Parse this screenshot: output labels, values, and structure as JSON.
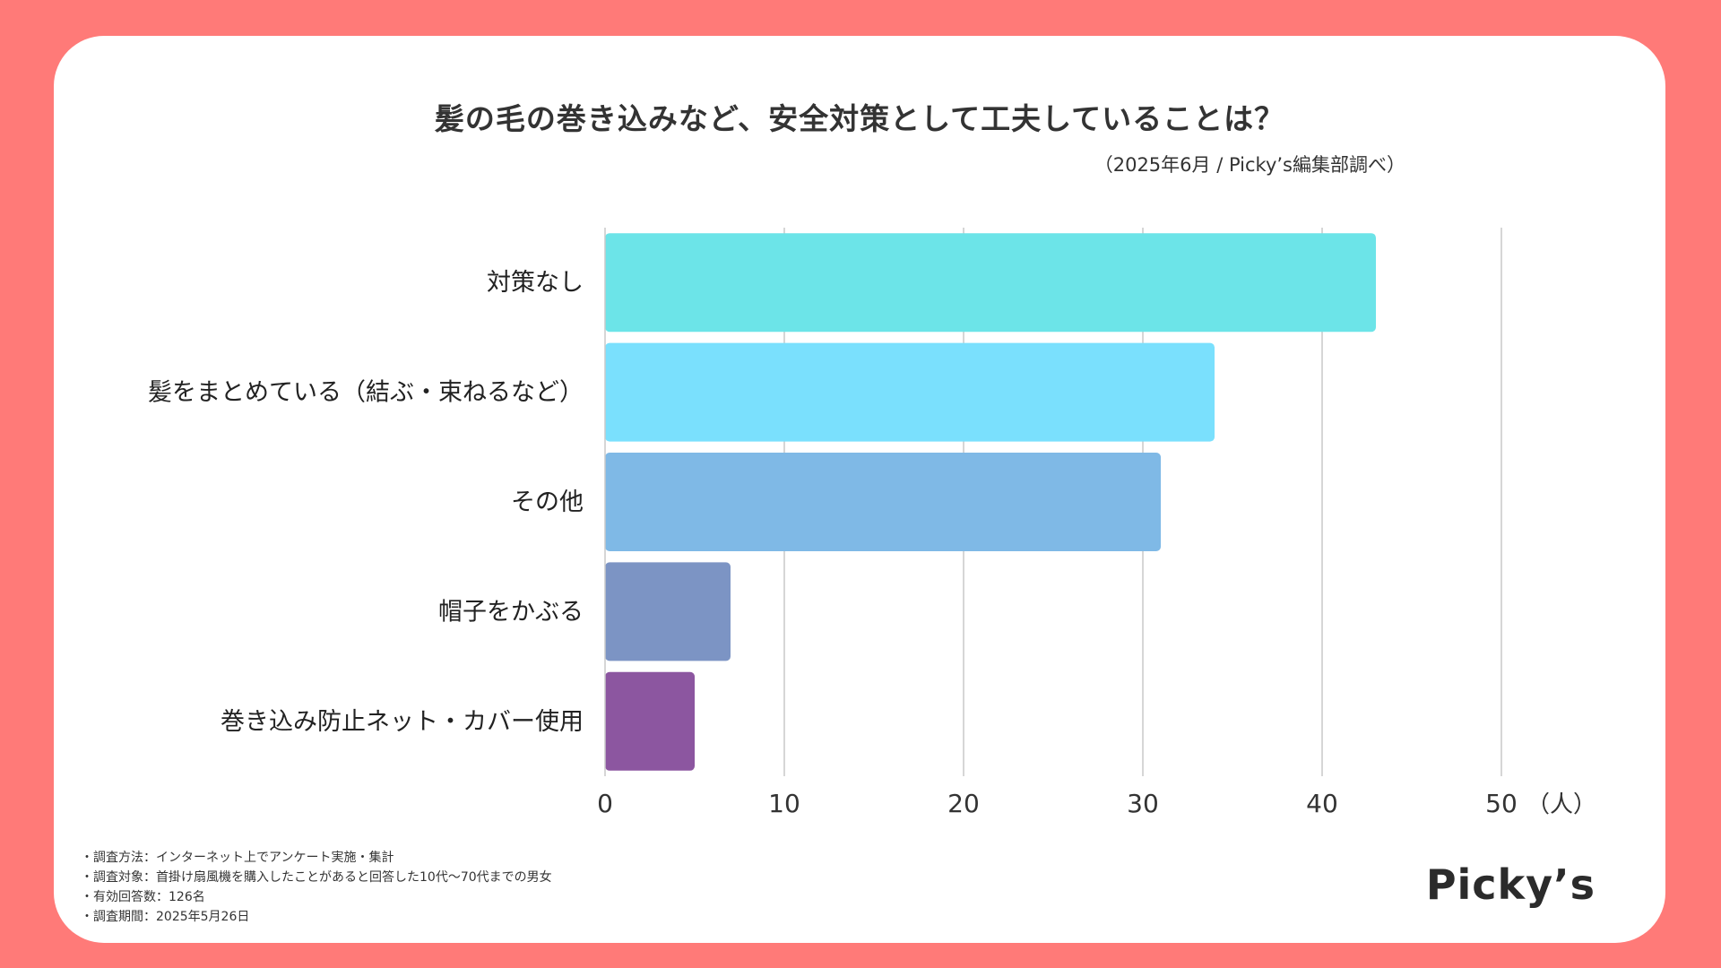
{
  "chart_data": {
    "type": "bar",
    "orientation": "horizontal",
    "title": "髪の毛の巻き込みなど、安全対策として工夫していることは？",
    "subtitle": "（2025年6月 / Picky’s編集部調べ）",
    "categories": [
      "対策なし",
      "髪をまとめている（結ぶ・束ねるなど）",
      "その他",
      "帽子をかぶる",
      "巻き込み防止ネット・カバー使用"
    ],
    "values": [
      43,
      34,
      31,
      7,
      5
    ],
    "colors": [
      "#6CE4E8",
      "#7AE0FD",
      "#7FB9E6",
      "#7C94C4",
      "#8C56A0"
    ],
    "xlim": [
      0,
      50
    ],
    "xticks": [
      "0",
      "10",
      "20",
      "30",
      "40",
      "50"
    ],
    "xunit": "（人）",
    "grid": true
  },
  "notes": [
    "・調査方法：インターネット上でアンケート実施・集計",
    "・調査対象：首掛け扇風機を購入したことがあると回答した10代〜70代までの男女",
    "・有効回答数：126名",
    "・調査期間：2025年5月26日"
  ],
  "logo": {
    "text": "Picky’s"
  }
}
